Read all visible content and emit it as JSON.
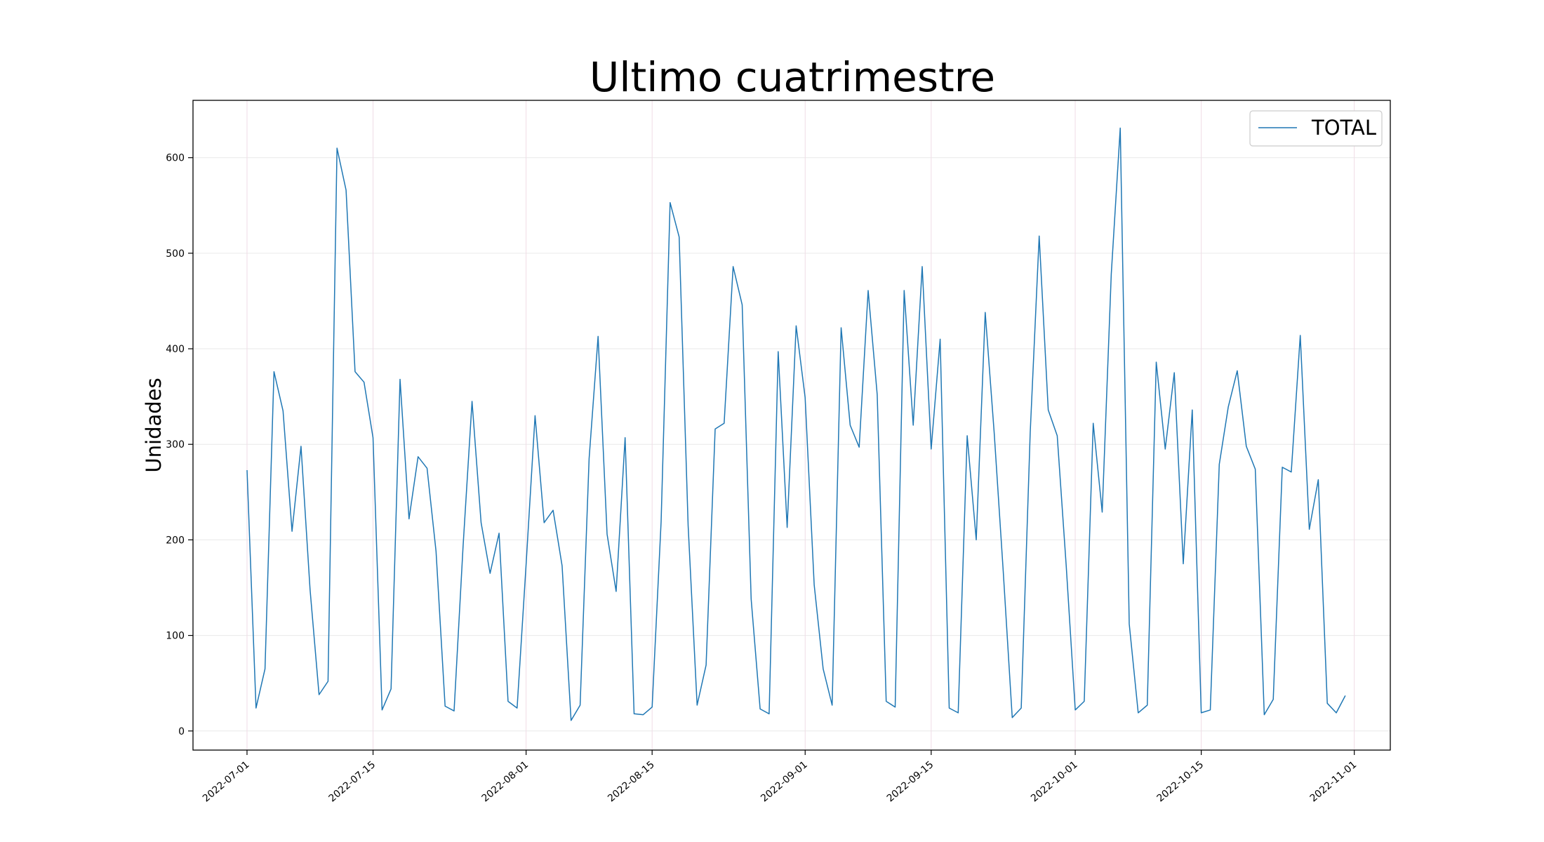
{
  "chart_data": {
    "type": "line",
    "title": "Ultimo cuatrimestre",
    "xlabel": "",
    "ylabel": "Unidades",
    "xlim": [
      "2022-06-25",
      "2022-11-05"
    ],
    "ylim": [
      -20,
      660
    ],
    "x_ticks": [
      "2022-07-01",
      "2022-07-15",
      "2022-08-01",
      "2022-08-15",
      "2022-09-01",
      "2022-09-15",
      "2022-10-01",
      "2022-10-15",
      "2022-11-01"
    ],
    "y_ticks": [
      0,
      100,
      200,
      300,
      400,
      500,
      600
    ],
    "grid": true,
    "legend": {
      "position": "top-right",
      "entries": [
        "TOTAL"
      ]
    },
    "series": [
      {
        "name": "TOTAL",
        "color": "#1f77b4",
        "start_date": "2022-07-01",
        "values": [
          273,
          24,
          65,
          376,
          335,
          209,
          298,
          148,
          38,
          52,
          610,
          566,
          376,
          365,
          307,
          22,
          44,
          368,
          222,
          287,
          275,
          188,
          26,
          21,
          193,
          345,
          218,
          165,
          207,
          31,
          24,
          174,
          330,
          218,
          231,
          173,
          11,
          27,
          285,
          413,
          206,
          146,
          307,
          18,
          17,
          25,
          219,
          553,
          517,
          215,
          27,
          69,
          316,
          322,
          486,
          446,
          138,
          23,
          18,
          397,
          213,
          424,
          349,
          153,
          65,
          27,
          422,
          320,
          297,
          461,
          352,
          31,
          25,
          461,
          320,
          486,
          295,
          410,
          24,
          19,
          309,
          200,
          438,
          312,
          168,
          14,
          24,
          312,
          518,
          336,
          309,
          173,
          22,
          31,
          322,
          229,
          478,
          631,
          112,
          19,
          27,
          386,
          295,
          375,
          175,
          336,
          19,
          22,
          279,
          339,
          377,
          298,
          274,
          17,
          33,
          276,
          271,
          414,
          211,
          263,
          29,
          19,
          37
        ]
      }
    ]
  }
}
